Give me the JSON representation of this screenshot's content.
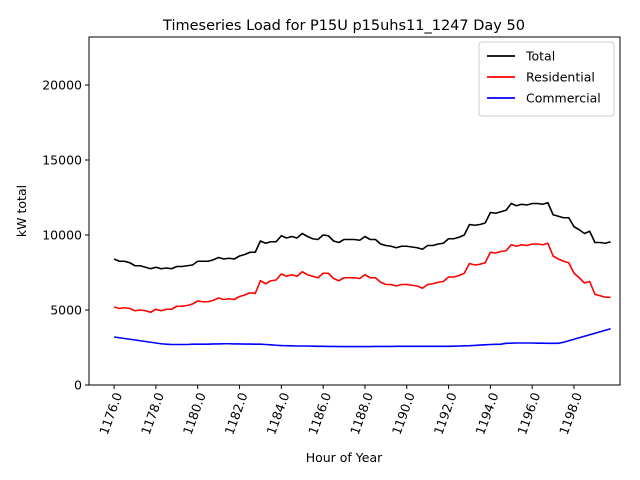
{
  "chart_data": {
    "type": "line",
    "title": "Timeseries Load for P15U p15uhs11_1247  Day 50",
    "xlabel": "Hour of Year",
    "ylabel": "kW total",
    "xlim": [
      1174.8,
      1200.2
    ],
    "ylim": [
      0,
      23200
    ],
    "xticks": [
      1176,
      1178,
      1180,
      1182,
      1184,
      1186,
      1188,
      1190,
      1192,
      1194,
      1196,
      1198
    ],
    "xtick_labels": [
      "1176.0",
      "1178.0",
      "1180.0",
      "1182.0",
      "1184.0",
      "1186.0",
      "1188.0",
      "1190.0",
      "1192.0",
      "1194.0",
      "1196.0",
      "1198.0"
    ],
    "yticks": [
      0,
      5000,
      10000,
      15000,
      20000
    ],
    "ytick_labels": [
      "0",
      "5000",
      "10000",
      "15000",
      "20000"
    ],
    "legend_position": "top-right",
    "x_start": 1176.0,
    "x_step": 0.25,
    "series": [
      {
        "name": "Total",
        "color": "#000000",
        "values": [
          8400,
          8250,
          8250,
          8150,
          7950,
          7950,
          7850,
          7750,
          7850,
          7750,
          7800,
          7750,
          7900,
          7900,
          7950,
          8000,
          8250,
          8250,
          8250,
          8350,
          8500,
          8400,
          8450,
          8400,
          8600,
          8700,
          8850,
          8850,
          9600,
          9450,
          9550,
          9550,
          9950,
          9800,
          9900,
          9800,
          10100,
          9900,
          9750,
          9700,
          10000,
          9950,
          9600,
          9500,
          9700,
          9700,
          9700,
          9650,
          9900,
          9700,
          9700,
          9400,
          9300,
          9250,
          9150,
          9250,
          9250,
          9200,
          9150,
          9050,
          9300,
          9300,
          9400,
          9450,
          9750,
          9750,
          9850,
          10000,
          10700,
          10650,
          10700,
          10800,
          11500,
          11450,
          11550,
          11650,
          12100,
          11950,
          12050,
          12000,
          12100,
          12100,
          12050,
          12150,
          11350,
          11250,
          11150,
          11150,
          10550,
          10350,
          10100,
          10250,
          9500,
          9500,
          9450,
          9550
        ]
      },
      {
        "name": "Residential",
        "color": "#ff0000",
        "values": [
          5200,
          5100,
          5150,
          5100,
          4950,
          5000,
          4950,
          4850,
          5050,
          4950,
          5050,
          5050,
          5250,
          5250,
          5300,
          5400,
          5600,
          5550,
          5550,
          5650,
          5800,
          5700,
          5750,
          5700,
          5900,
          6000,
          6150,
          6100,
          6950,
          6750,
          6950,
          7000,
          7400,
          7250,
          7350,
          7250,
          7550,
          7350,
          7250,
          7150,
          7450,
          7450,
          7100,
          6950,
          7150,
          7150,
          7150,
          7100,
          7350,
          7150,
          7150,
          6850,
          6700,
          6700,
          6600,
          6700,
          6700,
          6650,
          6600,
          6450,
          6700,
          6750,
          6850,
          6900,
          7200,
          7200,
          7300,
          7450,
          8100,
          8000,
          8050,
          8150,
          8850,
          8800,
          8900,
          8950,
          9350,
          9250,
          9350,
          9300,
          9400,
          9400,
          9350,
          9450,
          8600,
          8400,
          8250,
          8150,
          7450,
          7150,
          6800,
          6900,
          6050,
          5950,
          5850,
          5850
        ]
      },
      {
        "name": "Commercial",
        "color": "#0000ff",
        "values": [
          3200,
          3150,
          3100,
          3050,
          3000,
          2950,
          2900,
          2850,
          2800,
          2750,
          2720,
          2700,
          2700,
          2700,
          2700,
          2720,
          2720,
          2720,
          2720,
          2740,
          2740,
          2750,
          2750,
          2740,
          2740,
          2730,
          2730,
          2720,
          2720,
          2700,
          2680,
          2650,
          2630,
          2620,
          2610,
          2600,
          2600,
          2600,
          2590,
          2580,
          2580,
          2570,
          2570,
          2560,
          2560,
          2560,
          2560,
          2560,
          2560,
          2560,
          2570,
          2570,
          2570,
          2570,
          2580,
          2580,
          2580,
          2580,
          2580,
          2580,
          2580,
          2580,
          2580,
          2580,
          2580,
          2590,
          2600,
          2610,
          2620,
          2640,
          2660,
          2680,
          2700,
          2710,
          2720,
          2780,
          2790,
          2800,
          2800,
          2800,
          2800,
          2790,
          2790,
          2780,
          2780,
          2780,
          2850,
          2950,
          3050,
          3150,
          3250,
          3350,
          3450,
          3550,
          3650,
          3750
        ]
      }
    ]
  }
}
